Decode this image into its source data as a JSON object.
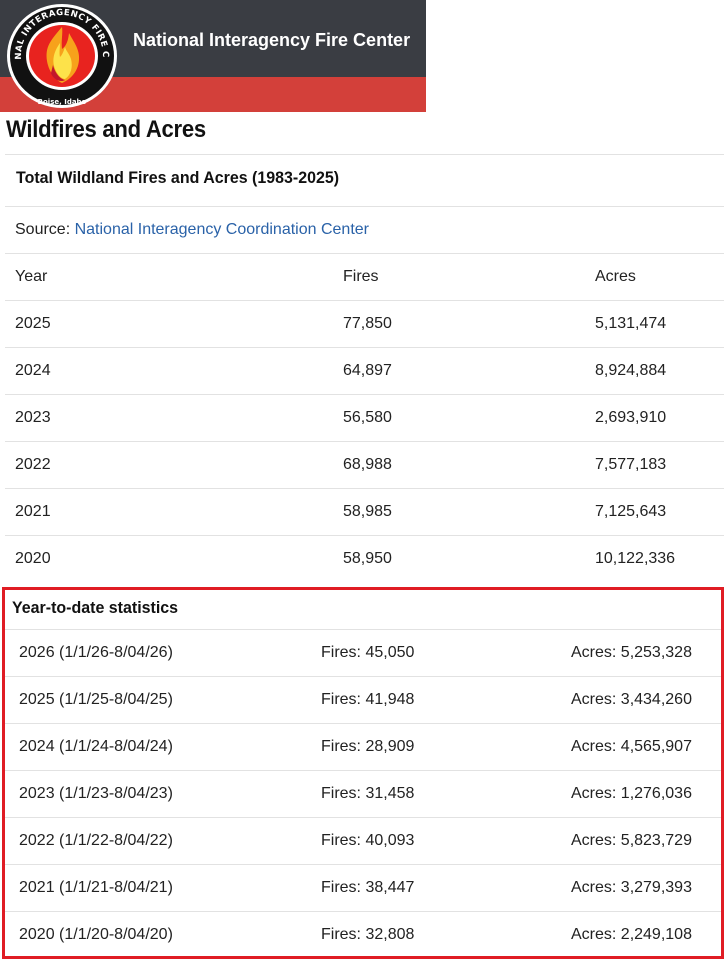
{
  "header": {
    "site_title": "National Interagency Fire Center",
    "logo": {
      "ring_text_top": "NATIONAL INTERAGENCY FIRE CENTER",
      "ring_text_bottom": "Boise, Idaho",
      "icon": "flame-logo-icon"
    },
    "colors": {
      "dark_band": "#3a3d43",
      "red_band": "#d3403a"
    }
  },
  "page_title": "Wildfires and Acres",
  "total_table": {
    "caption": "Total Wildland Fires and Acres (1983-2025)",
    "source_label": "Source: ",
    "source_link": "National Interagency Coordination Center",
    "columns": [
      "Year",
      "Fires",
      "Acres"
    ],
    "rows": [
      [
        "2025",
        "77,850",
        "5,131,474"
      ],
      [
        "2024",
        "64,897",
        "8,924,884"
      ],
      [
        "2023",
        "56,580",
        "2,693,910"
      ],
      [
        "2022",
        "68,988",
        "7,577,183"
      ],
      [
        "2021",
        "58,985",
        "7,125,643"
      ],
      [
        "2020",
        "58,950",
        "10,122,336"
      ]
    ]
  },
  "ytd": {
    "title": "Year-to-date statistics",
    "rows": [
      [
        "2026 (1/1/26-8/04/26)",
        "Fires: 45,050",
        "Acres: 5,253,328"
      ],
      [
        "2025 (1/1/25-8/04/25)",
        "Fires: 41,948",
        "Acres: 3,434,260"
      ],
      [
        "2024 (1/1/24-8/04/24)",
        "Fires: 28,909",
        "Acres: 4,565,907"
      ],
      [
        "2023 (1/1/23-8/04/23)",
        "Fires: 31,458",
        "Acres: 1,276,036"
      ],
      [
        "2022 (1/1/22-8/04/22)",
        "Fires: 40,093",
        "Acres: 5,823,729"
      ],
      [
        "2021 (1/1/21-8/04/21)",
        "Fires: 38,447",
        "Acres: 3,279,393"
      ],
      [
        "2020 (1/1/20-8/04/20)",
        "Fires: 32,808",
        "Acres: 2,249,108"
      ]
    ],
    "highlight_color": "#e01c24"
  }
}
